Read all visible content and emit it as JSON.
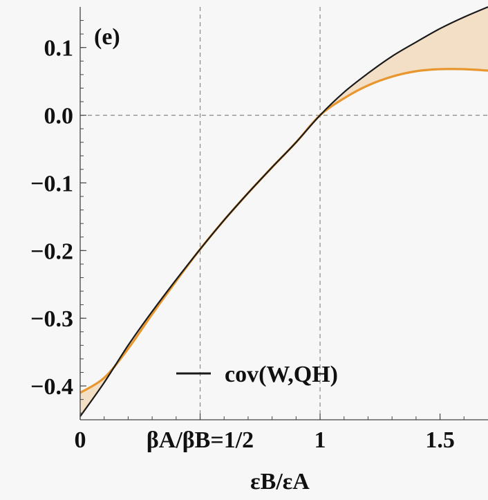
{
  "chart_data": {
    "type": "line",
    "panel_label": "(e)",
    "xlabel": "εB/εA",
    "ylabel": "",
    "xlim": [
      0,
      1.7
    ],
    "ylim": [
      -0.45,
      0.16
    ],
    "x_ticks": [
      {
        "value": 0,
        "label": "0"
      },
      {
        "value": 0.5,
        "label": "βA/βB=1/2"
      },
      {
        "value": 1,
        "label": "1"
      },
      {
        "value": 1.5,
        "label": "1.5"
      }
    ],
    "y_ticks": [
      {
        "value": 0.1,
        "label": "0.1"
      },
      {
        "value": 0.0,
        "label": "0.0"
      },
      {
        "value": -0.1,
        "label": "−0.1"
      },
      {
        "value": -0.2,
        "label": "−0.2"
      },
      {
        "value": -0.3,
        "label": "−0.3"
      },
      {
        "value": -0.4,
        "label": "−0.4"
      }
    ],
    "reference_lines": {
      "x": [
        0.5,
        1.0
      ],
      "y": [
        0.0
      ]
    },
    "legend": {
      "position": "bottom-center",
      "entries": [
        "cov(W,QH)"
      ]
    },
    "series": [
      {
        "name": "cov(W,QH)",
        "color": "#1a1a1a",
        "x": [
          0,
          0.1,
          0.2,
          0.3,
          0.4,
          0.5,
          0.6,
          0.7,
          0.8,
          0.9,
          1.0,
          1.1,
          1.2,
          1.3,
          1.4,
          1.5,
          1.6,
          1.7
        ],
        "y": [
          -0.445,
          -0.395,
          -0.34,
          -0.29,
          -0.243,
          -0.198,
          -0.155,
          -0.115,
          -0.077,
          -0.04,
          0.0,
          0.034,
          0.062,
          0.087,
          0.108,
          0.128,
          0.145,
          0.16
        ]
      },
      {
        "name": "",
        "color": "#e8962e",
        "x": [
          0,
          0.1,
          0.2,
          0.3,
          0.4,
          0.5,
          0.6,
          0.7,
          0.8,
          0.9,
          1.0,
          1.1,
          1.2,
          1.3,
          1.4,
          1.5,
          1.6,
          1.7
        ],
        "y": [
          -0.41,
          -0.388,
          -0.345,
          -0.294,
          -0.245,
          -0.198,
          -0.155,
          -0.115,
          -0.077,
          -0.04,
          0.0,
          0.025,
          0.044,
          0.057,
          0.065,
          0.068,
          0.068,
          0.066
        ]
      }
    ],
    "band": {
      "between": [
        "cov(W,QH)",
        ""
      ],
      "fill": "#f3dfc6"
    }
  }
}
